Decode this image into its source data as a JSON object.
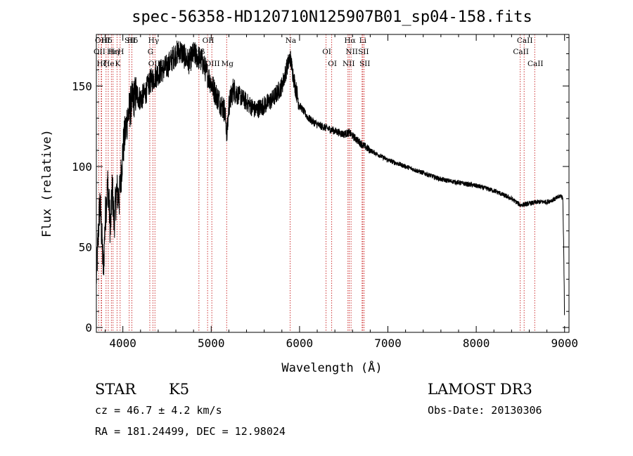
{
  "chart_data": {
    "type": "line",
    "title": "spec-56358-HD120710N125907B01_sp04-158.fits",
    "xlabel": "Wavelength (Å)",
    "ylabel": "Flux (relative)",
    "xlim": [
      3700,
      9050
    ],
    "ylim": [
      -3,
      182
    ],
    "x_ticks": [
      4000,
      5000,
      6000,
      7000,
      8000,
      9000
    ],
    "y_ticks": [
      0,
      50,
      100,
      150
    ],
    "spectrum_anchors": {
      "x": [
        3700,
        3720,
        3740,
        3760,
        3780,
        3800,
        3830,
        3860,
        3880,
        3900,
        3930,
        3960,
        4000,
        4050,
        4100,
        4150,
        4200,
        4250,
        4300,
        4350,
        4400,
        4450,
        4500,
        4550,
        4600,
        4650,
        4700,
        4750,
        4800,
        4850,
        4900,
        4950,
        5000,
        5050,
        5100,
        5150,
        5180,
        5200,
        5250,
        5300,
        5400,
        5500,
        5600,
        5700,
        5800,
        5850,
        5893,
        5950,
        6000,
        6100,
        6200,
        6300,
        6400,
        6500,
        6563,
        6600,
        6700,
        6800,
        6900,
        7000,
        7200,
        7400,
        7600,
        7800,
        8000,
        8200,
        8400,
        8500,
        8600,
        8700,
        8800,
        8900,
        8960,
        8980,
        8990,
        9000
      ],
      "y": [
        30,
        55,
        78,
        58,
        35,
        68,
        90,
        60,
        88,
        65,
        85,
        80,
        110,
        130,
        140,
        145,
        142,
        145,
        152,
        155,
        158,
        160,
        162,
        166,
        170,
        172,
        168,
        165,
        170,
        168,
        165,
        158,
        152,
        145,
        140,
        135,
        120,
        138,
        148,
        145,
        140,
        135,
        138,
        142,
        150,
        160,
        168,
        150,
        138,
        130,
        126,
        124,
        122,
        120,
        121,
        119,
        114,
        110,
        107,
        104,
        100,
        96,
        92,
        90,
        88,
        85,
        80,
        76,
        77,
        78,
        78,
        80,
        82,
        80,
        50,
        5
      ]
    },
    "emission_lines": [
      {
        "name": "Hδ",
        "wavelength": 4102
      },
      {
        "name": "OII",
        "wavelength": 3727
      },
      {
        "name": "He",
        "wavelength": 3835
      },
      {
        "name": "OIII",
        "wavelength": 3760
      },
      {
        "name": "Hη",
        "wavelength": 3889
      },
      {
        "name": "K",
        "wavelength": 3934
      },
      {
        "name": "SII",
        "wavelength": 4072
      },
      {
        "name": "H",
        "wavelength": 3969
      },
      {
        "name": "OIII",
        "wavelength": 4363
      },
      {
        "name": "Hγ",
        "wavelength": 4340
      },
      {
        "name": "G",
        "wavelength": 4305
      },
      {
        "name": "OIII",
        "wavelength": 5007
      },
      {
        "name": "OII",
        "wavelength": 4959
      },
      {
        "name": "Hβ",
        "wavelength": 4861
      },
      {
        "name": "Mg",
        "wavelength": 5175
      },
      {
        "name": "Na",
        "wavelength": 5893
      },
      {
        "name": "OI",
        "wavelength": 6300
      },
      {
        "name": "OI",
        "wavelength": 6364
      },
      {
        "name": "Hα",
        "wavelength": 6563
      },
      {
        "name": "SII",
        "wavelength": 6716
      },
      {
        "name": "NII",
        "wavelength": 6548
      },
      {
        "name": "Li",
        "wavelength": 6708
      },
      {
        "name": "NII",
        "wavelength": 6583
      },
      {
        "name": "SII",
        "wavelength": 6731
      },
      {
        "name": "CaII",
        "wavelength": 8542
      },
      {
        "name": "CaII",
        "wavelength": 8498
      },
      {
        "name": "CaII",
        "wavelength": 8662
      }
    ],
    "absorption_lines": [
      {
        "name": "Hδ",
        "wavelength": 3810
      },
      {
        "name": "Hε",
        "wavelength": 3870
      },
      {
        "name": "Hζ",
        "wavelength": 3755
      }
    ]
  },
  "info": {
    "object_class": "STAR",
    "subclass": "K5",
    "survey": "LAMOST DR3",
    "redshift": "cz = 46.7 ± 4.2 km/s",
    "obs_date": "Obs-Date: 20130306",
    "coords": "RA = 181.24499, DEC =  12.98024"
  }
}
